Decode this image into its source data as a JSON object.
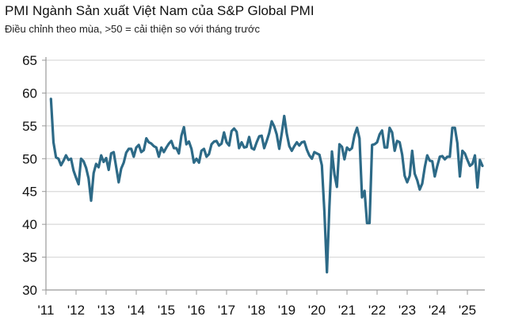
{
  "chart_data": {
    "type": "line",
    "title": "PMI Ngành Sản xuất Việt Nam của S&P Global PMI",
    "subtitle": "Điều chỉnh theo mùa, >50 = cải thiện so với tháng trước",
    "xlabel": "",
    "ylabel": "",
    "ylim": [
      30,
      65
    ],
    "yticks": [
      "65",
      "60",
      "55",
      "50",
      "45",
      "40",
      "35",
      "30"
    ],
    "ytick_values": [
      65,
      60,
      55,
      50,
      45,
      40,
      35,
      30
    ],
    "xticks": [
      "'11",
      "'12",
      "'13",
      "'14",
      "'15",
      "'16",
      "'17",
      "'18",
      "'19",
      "'20",
      "'21",
      "'22",
      "'23",
      "'24",
      "'25"
    ],
    "xtick_years": [
      2011,
      2012,
      2013,
      2014,
      2015,
      2016,
      2017,
      2018,
      2019,
      2020,
      2021,
      2022,
      2023,
      2024,
      2025
    ],
    "grid": true,
    "color": "#2d6a87",
    "start": {
      "year": 2011,
      "month": 3
    },
    "series": [
      {
        "name": "PMI",
        "values": [
          59.1,
          52.5,
          50.2,
          50.0,
          49.0,
          49.7,
          50.5,
          49.8,
          50.0,
          48.2,
          47.1,
          46.1,
          50.0,
          49.6,
          48.6,
          47.0,
          43.6,
          47.8,
          49.2,
          48.7,
          50.5,
          49.5,
          50.1,
          48.3,
          50.8,
          51.0,
          48.7,
          46.4,
          48.5,
          49.4,
          50.9,
          51.5,
          51.5,
          50.3,
          51.7,
          52.1,
          51.0,
          51.3,
          53.1,
          52.5,
          52.3,
          51.9,
          51.7,
          50.3,
          51.7,
          51.0,
          51.7,
          52.3,
          52.7,
          51.6,
          51.6,
          50.8,
          53.5,
          54.8,
          52.2,
          52.6,
          51.5,
          49.4,
          50.0,
          49.4,
          51.2,
          51.5,
          50.3,
          50.7,
          52.2,
          52.6,
          52.7,
          52.0,
          52.3,
          54.0,
          52.5,
          52.0,
          54.2,
          54.6,
          54.1,
          51.6,
          52.5,
          51.7,
          51.8,
          53.3,
          51.6,
          51.4,
          52.5,
          53.4,
          53.5,
          51.6,
          52.7,
          53.9,
          55.7,
          54.9,
          53.7,
          51.5,
          53.9,
          56.5,
          53.8,
          51.9,
          51.2,
          51.9,
          52.5,
          52.0,
          52.5,
          52.6,
          51.4,
          50.5,
          50.0,
          51.0,
          50.8,
          50.6,
          49.0,
          41.9,
          32.7,
          42.7,
          51.1,
          47.6,
          45.7,
          52.2,
          51.8,
          49.9,
          51.7,
          51.3,
          51.6,
          53.6,
          54.7,
          53.1,
          44.1,
          45.1,
          40.2,
          40.2,
          52.1,
          52.2,
          52.5,
          53.7,
          54.3,
          51.7,
          51.7,
          54.7,
          54.0,
          51.2,
          52.7,
          52.5,
          50.6,
          47.4,
          46.4,
          47.4,
          51.2,
          47.7,
          46.7,
          45.3,
          46.2,
          48.7,
          50.5,
          49.7,
          49.6,
          47.3,
          48.9,
          50.3,
          50.4,
          49.9,
          50.3,
          50.3,
          54.7,
          54.7,
          52.4,
          47.3,
          51.2,
          50.8,
          49.8,
          48.9,
          49.2,
          50.5,
          45.6,
          49.8,
          48.9
        ]
      }
    ]
  }
}
